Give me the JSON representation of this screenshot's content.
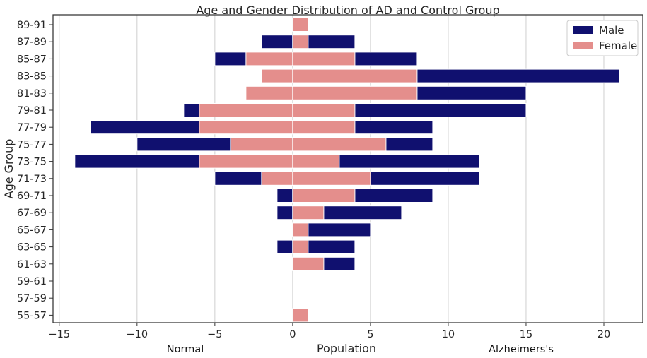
{
  "chart_data": {
    "type": "bar",
    "orientation": "horizontal",
    "title": "Age and Gender Distribution of AD and Control Group",
    "xlabel": "Population",
    "ylabel": "Age Group",
    "side_labels": {
      "left": "Normal",
      "right": "Alzheimers's"
    },
    "xlim": [
      -15.4,
      22.5
    ],
    "xticks": [
      -15,
      -10,
      -5,
      0,
      5,
      10,
      15,
      20
    ],
    "xtick_labels": [
      "−15",
      "−10",
      "−5",
      "0",
      "5",
      "10",
      "15",
      "20"
    ],
    "grid": "vertical",
    "legend_position": "top-right",
    "categories": [
      "89-91",
      "87-89",
      "85-87",
      "83-85",
      "81-83",
      "79-81",
      "77-79",
      "75-77",
      "73-75",
      "71-73",
      "69-71",
      "67-69",
      "65-67",
      "63-65",
      "61-63",
      "59-61",
      "57-59",
      "55-57"
    ],
    "series": [
      {
        "name": "Male",
        "color": "#10106f",
        "values": [
          [
            0,
            0
          ],
          [
            -2,
            4
          ],
          [
            -5,
            8
          ],
          [
            0,
            21
          ],
          [
            0,
            15
          ],
          [
            -7,
            15
          ],
          [
            -13,
            9
          ],
          [
            -10,
            9
          ],
          [
            -14,
            12
          ],
          [
            -5,
            12
          ],
          [
            -1,
            9
          ],
          [
            -1,
            7
          ],
          [
            0,
            5
          ],
          [
            -1,
            4
          ],
          [
            0,
            4
          ],
          [
            0,
            0
          ],
          [
            0,
            0
          ],
          [
            0,
            0
          ]
        ]
      },
      {
        "name": "Female",
        "color": "#e48e8c",
        "values": [
          [
            0,
            1
          ],
          [
            0,
            1
          ],
          [
            -3,
            4
          ],
          [
            -2,
            8
          ],
          [
            -3,
            8
          ],
          [
            -6,
            4
          ],
          [
            -6,
            4
          ],
          [
            -4,
            6
          ],
          [
            -6,
            3
          ],
          [
            -2,
            5
          ],
          [
            0,
            4
          ],
          [
            0,
            2
          ],
          [
            0,
            1
          ],
          [
            0,
            1
          ],
          [
            0,
            2
          ],
          [
            0,
            0
          ],
          [
            0,
            0
          ],
          [
            0,
            1
          ]
        ]
      }
    ],
    "value_format": "[Normal (negative), Alzheimers's (positive)] per age group"
  }
}
